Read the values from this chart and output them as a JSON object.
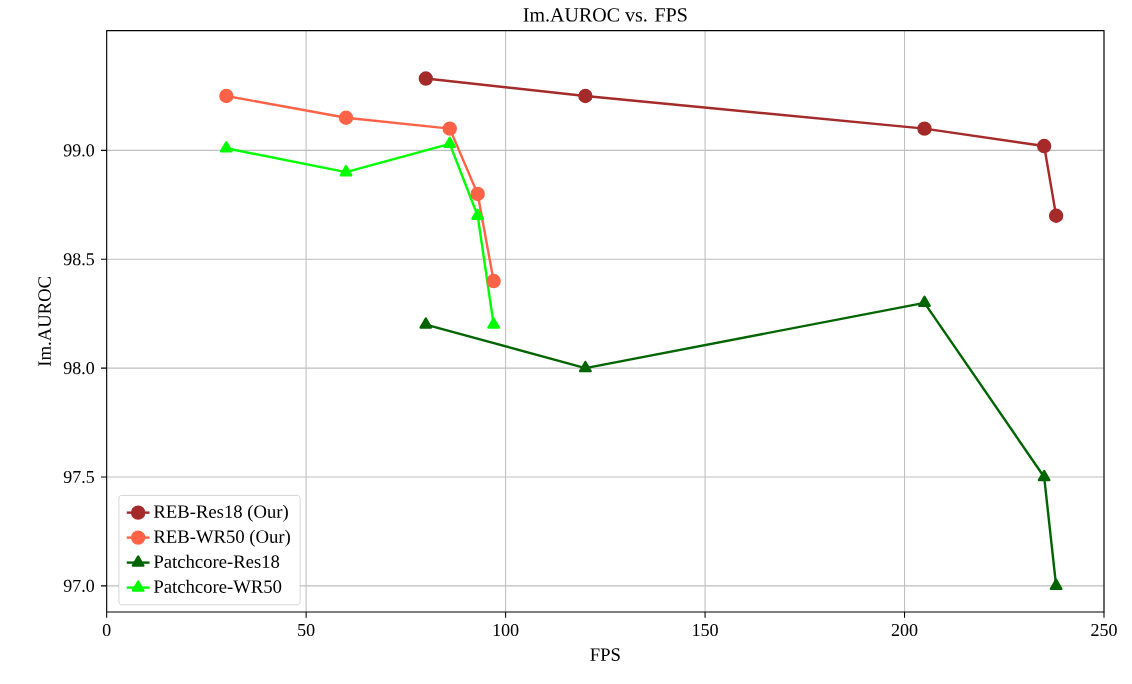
{
  "chart_data": {
    "type": "line",
    "title": "Im.AUROC vs. FPS",
    "xlabel": "FPS",
    "ylabel": "Im.AUROC",
    "xlim": [
      0,
      250
    ],
    "xticks": [
      0,
      50,
      100,
      150,
      200,
      250
    ],
    "ylim": [
      96.88,
      99.55
    ],
    "yticks": [
      {
        "value": 97.0,
        "label": "97.0"
      },
      {
        "value": 97.5,
        "label": "97.5"
      },
      {
        "value": 98.0,
        "label": "98.0"
      },
      {
        "value": 98.5,
        "label": "98.5"
      },
      {
        "value": 99.0,
        "label": "99.0"
      }
    ],
    "grid": true,
    "legend": "bottom left",
    "series": [
      {
        "name": "REB-Res18 (Our)",
        "color": "#a52a2a",
        "marker": "circle",
        "x": [
          80,
          120,
          205,
          235,
          238
        ],
        "values": [
          99.33,
          99.25,
          99.1,
          99.02,
          98.7
        ]
      },
      {
        "name": "REB-WR50 (Our)",
        "color": "#ff6347",
        "marker": "circle",
        "x": [
          30,
          60,
          86,
          93,
          97
        ],
        "values": [
          99.25,
          99.15,
          99.1,
          98.8,
          98.4
        ]
      },
      {
        "name": "Patchcore-Res18",
        "color": "#006400",
        "marker": "triangle",
        "x": [
          80,
          120,
          205,
          235,
          238
        ],
        "values": [
          98.2,
          98.0,
          98.3,
          97.5,
          97.0
        ]
      },
      {
        "name": "Patchcore-WR50",
        "color": "#00ff00",
        "marker": "triangle",
        "x": [
          30,
          60,
          86,
          93,
          97
        ],
        "values": [
          99.01,
          98.9,
          99.03,
          98.7,
          98.2
        ]
      }
    ]
  }
}
